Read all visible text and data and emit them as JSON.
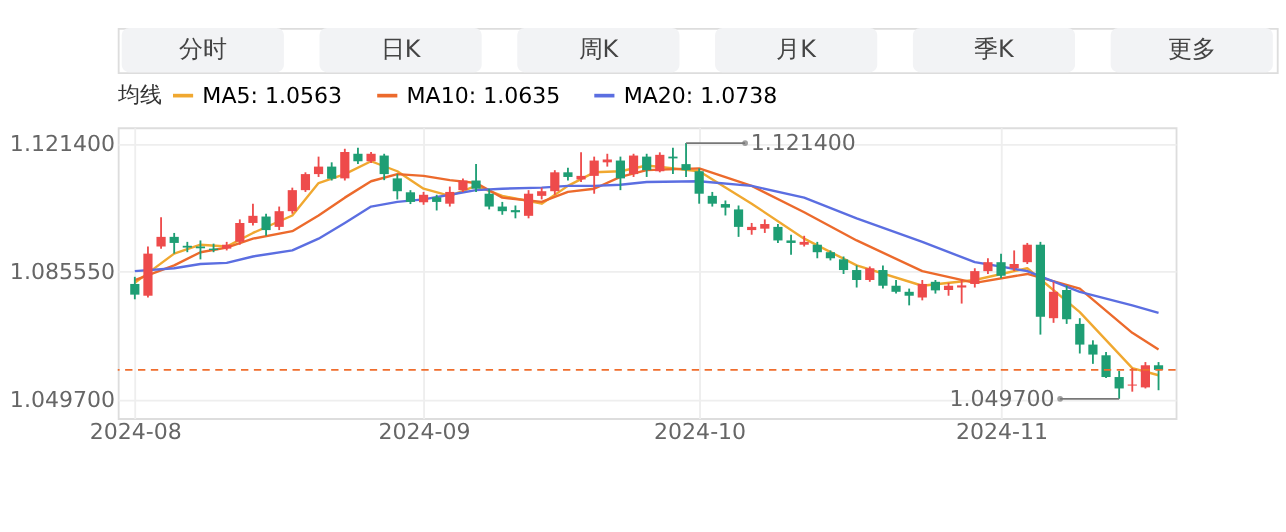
{
  "chart_data": {
    "type": "candlestick",
    "annotations": [
      "分时",
      "日K",
      "周K",
      "月K",
      "季K",
      "更多",
      "1.121400",
      "1.049700"
    ],
    "categories": [
      "2024-08",
      null,
      null,
      null,
      null,
      null,
      null,
      null,
      null,
      null,
      null,
      null,
      null,
      null,
      null,
      null,
      null,
      null,
      null,
      null,
      null,
      null,
      "2024-09",
      null,
      null,
      null,
      null,
      null,
      null,
      null,
      null,
      null,
      null,
      null,
      null,
      null,
      null,
      null,
      null,
      null,
      null,
      null,
      null,
      "2024-10",
      null,
      null,
      null,
      null,
      null,
      null,
      null,
      null,
      null,
      null,
      null,
      null,
      null,
      null,
      null,
      null,
      null,
      null,
      null,
      null,
      null,
      null,
      "2024-11",
      null,
      null,
      null,
      null,
      null,
      null,
      null,
      null,
      null,
      null,
      null,
      null
    ],
    "ohlc": [
      [
        1.0819,
        1.0839,
        1.0776,
        1.0789
      ],
      [
        1.0786,
        1.0924,
        1.0781,
        1.0904
      ],
      [
        1.0924,
        1.1006,
        1.0918,
        1.0951
      ],
      [
        1.0951,
        1.0962,
        1.0904,
        1.0934
      ],
      [
        1.0926,
        1.0937,
        1.0908,
        1.0921
      ],
      [
        1.0924,
        1.0941,
        1.0888,
        1.0919
      ],
      [
        1.0918,
        1.0932,
        1.0908,
        1.0914
      ],
      [
        1.0918,
        1.0937,
        1.0913,
        1.0929
      ],
      [
        1.0937,
        1.1,
        1.0929,
        1.099
      ],
      [
        1.099,
        1.1044,
        1.0983,
        1.101
      ],
      [
        1.1008,
        1.1016,
        1.0954,
        1.097
      ],
      [
        1.0979,
        1.1036,
        1.097,
        1.1023
      ],
      [
        1.1023,
        1.1089,
        1.1016,
        1.1082
      ],
      [
        1.1082,
        1.1132,
        1.1077,
        1.1127
      ],
      [
        1.1127,
        1.1176,
        1.1119,
        1.1148
      ],
      [
        1.1148,
        1.116,
        1.1109,
        1.1114
      ],
      [
        1.1115,
        1.1198,
        1.1109,
        1.1189
      ],
      [
        1.1184,
        1.1201,
        1.1155,
        1.1163
      ],
      [
        1.1163,
        1.1189,
        1.1158,
        1.1184
      ],
      [
        1.1179,
        1.1184,
        1.111,
        1.1127
      ],
      [
        1.1115,
        1.1127,
        1.1056,
        1.1079
      ],
      [
        1.1076,
        1.1082,
        1.1043,
        1.1049
      ],
      [
        1.1048,
        1.1077,
        1.1041,
        1.1069
      ],
      [
        1.1062,
        1.1069,
        1.1025,
        1.1049
      ],
      [
        1.1044,
        1.1092,
        1.1036,
        1.1077
      ],
      [
        1.1082,
        1.1115,
        1.1077,
        1.1109
      ],
      [
        1.1109,
        1.1155,
        1.1077,
        1.1086
      ],
      [
        1.1072,
        1.1086,
        1.1028,
        1.1036
      ],
      [
        1.1036,
        1.1049,
        1.1013,
        1.1023
      ],
      [
        1.1026,
        1.1039,
        1.1003,
        1.102
      ],
      [
        1.101,
        1.1082,
        1.1003,
        1.1072
      ],
      [
        1.1066,
        1.1089,
        1.1056,
        1.1079
      ],
      [
        1.1079,
        1.1138,
        1.1069,
        1.1132
      ],
      [
        1.1132,
        1.1145,
        1.1109,
        1.1119
      ],
      [
        1.1112,
        1.1188,
        1.1105,
        1.1122
      ],
      [
        1.1122,
        1.1176,
        1.1072,
        1.1165
      ],
      [
        1.116,
        1.1184,
        1.1148,
        1.1168
      ],
      [
        1.1165,
        1.1176,
        1.1082,
        1.1115
      ],
      [
        1.1127,
        1.1184,
        1.1119,
        1.1179
      ],
      [
        1.1176,
        1.1184,
        1.1119,
        1.1138
      ],
      [
        1.1135,
        1.1188,
        1.1132,
        1.1181
      ],
      [
        1.1176,
        1.1201,
        1.1127,
        1.1171
      ],
      [
        1.1155,
        1.1214,
        1.1119,
        1.1138
      ],
      [
        1.1135,
        1.1143,
        1.1044,
        1.1072
      ],
      [
        1.1066,
        1.1077,
        1.1036,
        1.1044
      ],
      [
        1.1043,
        1.1053,
        1.1011,
        1.1033
      ],
      [
        1.1028,
        1.1039,
        1.0951,
        1.0979
      ],
      [
        1.097,
        1.099,
        1.0957,
        1.0979
      ],
      [
        1.0974,
        1.1,
        1.0962,
        1.0987
      ],
      [
        1.0979,
        1.0987,
        1.0934,
        1.0941
      ],
      [
        1.0941,
        1.0957,
        1.0901,
        1.0934
      ],
      [
        1.0929,
        1.0954,
        1.0924,
        1.0937
      ],
      [
        1.0929,
        1.0937,
        1.0891,
        1.0908
      ],
      [
        1.0908,
        1.0913,
        1.0885,
        1.0891
      ],
      [
        1.0888,
        1.0896,
        1.0847,
        1.0858
      ],
      [
        1.0858,
        1.0871,
        1.0809,
        1.083
      ],
      [
        1.083,
        1.0868,
        1.0825,
        1.0863
      ],
      [
        1.0858,
        1.0871,
        1.0806,
        1.0814
      ],
      [
        1.0814,
        1.083,
        1.0792,
        1.0797
      ],
      [
        1.0797,
        1.0806,
        1.0759,
        1.0786
      ],
      [
        1.0781,
        1.083,
        1.0773,
        1.0819
      ],
      [
        1.0825,
        1.083,
        1.0792,
        1.0801
      ],
      [
        1.0802,
        1.0822,
        1.0786,
        1.0814
      ],
      [
        1.0809,
        1.083,
        1.0764,
        1.0815
      ],
      [
        1.0819,
        1.0863,
        1.0809,
        1.0855
      ],
      [
        1.0855,
        1.0891,
        1.0847,
        1.088
      ],
      [
        1.088,
        1.0904,
        1.0835,
        1.0842
      ],
      [
        1.0863,
        1.0913,
        1.0855,
        1.0875
      ],
      [
        1.088,
        1.0934,
        1.0875,
        1.0929
      ],
      [
        1.0929,
        1.0937,
        1.0677,
        1.0727
      ],
      [
        1.0723,
        1.0825,
        1.071,
        1.0797
      ],
      [
        1.0802,
        1.0814,
        1.0707,
        1.072
      ],
      [
        1.0707,
        1.0723,
        1.0624,
        1.0649
      ],
      [
        1.0649,
        1.0661,
        1.0595,
        1.0621
      ],
      [
        1.0619,
        1.0628,
        1.0555,
        1.0558
      ],
      [
        1.0558,
        1.0575,
        1.0497,
        1.0526
      ],
      [
        1.0534,
        1.0583,
        1.0517,
        1.0537
      ],
      [
        1.0529,
        1.06,
        1.0526,
        1.0591
      ],
      [
        1.0591,
        1.06,
        1.0521,
        1.0578
      ]
    ],
    "colors": [
      "#1e9e74",
      "#ee4b4b",
      "#ee4b4b",
      "#1e9e74",
      "#1e9e74",
      "#1e9e74",
      "#1e9e74",
      "#ee4b4b",
      "#ee4b4b",
      "#ee4b4b",
      "#1e9e74",
      "#ee4b4b",
      "#ee4b4b",
      "#ee4b4b",
      "#ee4b4b",
      "#1e9e74",
      "#ee4b4b",
      "#1e9e74",
      "#ee4b4b",
      "#1e9e74",
      "#1e9e74",
      "#1e9e74",
      "#ee4b4b",
      "#1e9e74",
      "#ee4b4b",
      "#ee4b4b",
      "#1e9e74",
      "#1e9e74",
      "#1e9e74",
      "#1e9e74",
      "#ee4b4b",
      "#ee4b4b",
      "#ee4b4b",
      "#1e9e74",
      "#ee4b4b",
      "#ee4b4b",
      "#ee4b4b",
      "#1e9e74",
      "#ee4b4b",
      "#1e9e74",
      "#ee4b4b",
      "#1e9e74",
      "#1e9e74",
      "#1e9e74",
      "#1e9e74",
      "#1e9e74",
      "#1e9e74",
      "#ee4b4b",
      "#ee4b4b",
      "#1e9e74",
      "#1e9e74",
      "#ee4b4b",
      "#1e9e74",
      "#1e9e74",
      "#1e9e74",
      "#1e9e74",
      "#ee4b4b",
      "#1e9e74",
      "#1e9e74",
      "#1e9e74",
      "#ee4b4b",
      "#1e9e74",
      "#ee4b4b",
      "#ee4b4b",
      "#ee4b4b",
      "#ee4b4b",
      "#1e9e74",
      "#ee4b4b",
      "#ee4b4b",
      "#1e9e74",
      "#ee4b4b",
      "#1e9e74",
      "#1e9e74",
      "#1e9e74",
      "#1e9e74",
      "#1e9e74",
      "#ee4b4b",
      "#ee4b4b",
      "#1e9e74"
    ],
    "series": [
      {
        "name": "MA5: 1.0563",
        "type": "line",
        "color": "#f0a830",
        "values": [
          1.0822,
          null,
          null,
          1.0904,
          null,
          1.0929,
          null,
          1.0924,
          null,
          1.0962,
          null,
          null,
          1.1011,
          null,
          1.1102,
          null,
          1.1127,
          null,
          1.1163,
          null,
          1.1135,
          null,
          1.1086,
          null,
          1.1066,
          null,
          1.1094,
          null,
          1.1066,
          null,
          null,
          1.1044,
          null,
          1.1094,
          null,
          1.1132,
          null,
          1.1135,
          null,
          1.1151,
          null,
          null,
          null,
          1.1135,
          null,
          null,
          null,
          1.1044,
          null,
          null,
          null,
          1.0946,
          null,
          null,
          null,
          1.0871,
          null,
          null,
          null,
          null,
          1.0814,
          null,
          null,
          null,
          1.083,
          null,
          null,
          null,
          1.0863,
          null,
          null,
          null,
          1.074,
          null,
          null,
          null,
          1.0583,
          null,
          1.0563
        ]
      },
      {
        "name": "MA10: 1.0635",
        "type": "line",
        "color": "#ec6a2c",
        "values": [
          1.083,
          null,
          null,
          1.0871,
          null,
          1.0908,
          null,
          1.0921,
          null,
          1.0946,
          null,
          null,
          1.0967,
          null,
          1.1011,
          null,
          1.1061,
          null,
          1.1107,
          null,
          1.1127,
          null,
          1.1122,
          null,
          1.111,
          null,
          1.1102,
          null,
          1.1061,
          null,
          null,
          1.1049,
          null,
          1.1077,
          null,
          1.1086,
          null,
          1.1119,
          null,
          1.1138,
          null,
          null,
          null,
          1.1143,
          null,
          null,
          null,
          1.1094,
          null,
          null,
          null,
          1.102,
          null,
          null,
          null,
          1.0941,
          null,
          null,
          null,
          null,
          1.0855,
          null,
          null,
          null,
          1.0822,
          null,
          null,
          null,
          1.0847,
          null,
          null,
          null,
          1.0806,
          null,
          null,
          null,
          1.0682,
          null,
          1.0635
        ]
      },
      {
        "name": "MA20: 1.0738",
        "type": "line",
        "color": "#5b6ee1",
        "values": [
          1.0855,
          null,
          null,
          1.0863,
          null,
          1.0875,
          null,
          1.0878,
          null,
          1.0896,
          null,
          null,
          1.0913,
          null,
          1.0946,
          null,
          1.099,
          null,
          1.1036,
          null,
          1.1049,
          null,
          1.1056,
          null,
          1.1069,
          null,
          1.1082,
          null,
          1.1086,
          null,
          null,
          1.1089,
          null,
          1.1094,
          null,
          1.1094,
          null,
          1.1097,
          null,
          1.1105,
          null,
          null,
          null,
          1.1107,
          null,
          null,
          null,
          1.1094,
          null,
          null,
          null,
          1.1061,
          null,
          null,
          null,
          1.1003,
          null,
          null,
          null,
          null,
          1.0937,
          null,
          null,
          null,
          1.088,
          null,
          null,
          null,
          1.0855,
          null,
          null,
          null,
          1.0797,
          null,
          null,
          null,
          1.0759,
          null,
          1.0738
        ]
      }
    ],
    "legend_title": "均线",
    "legend": "top",
    "ylim": [
      1.0443,
      1.1258
    ],
    "yticks": [
      {
        "value": 1.1214,
        "label": "1.121400"
      },
      {
        "value": 1.08555,
        "label": "1.085550"
      },
      {
        "value": 1.0497,
        "label": "1.049700"
      }
    ],
    "grid": true,
    "ref_lines": [
      {
        "axis": "y",
        "value": 1.0578,
        "color": "#f06d2d",
        "line_style": "dashed"
      }
    ]
  }
}
